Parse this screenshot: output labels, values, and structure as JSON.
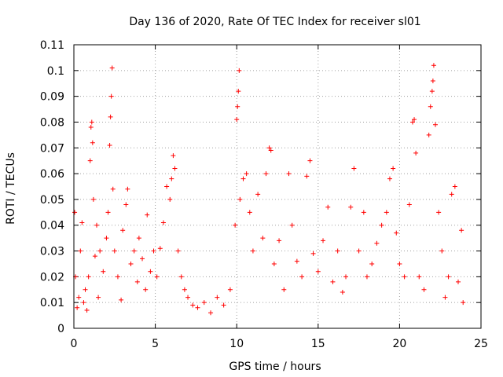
{
  "chart_data": {
    "type": "scatter",
    "title": "Day 136 of 2020, Rate Of TEC Index for receiver sl01",
    "xlabel": "GPS time / hours",
    "ylabel": "ROTI / TECUs",
    "xlim": [
      0,
      25
    ],
    "ylim": [
      0,
      0.11
    ],
    "x_ticks": [
      0,
      5,
      10,
      15,
      20,
      25
    ],
    "x_tick_labels": [
      "0",
      "5",
      "10",
      "15",
      "20",
      "25"
    ],
    "y_ticks": [
      0,
      0.01,
      0.02,
      0.03,
      0.04,
      0.05,
      0.06,
      0.07,
      0.08,
      0.09,
      0.1,
      0.11
    ],
    "y_tick_labels": [
      "0",
      "0.01",
      "0.02",
      "0.03",
      "0.04",
      "0.05",
      "0.06",
      "0.07",
      "0.08",
      "0.09",
      "0.1",
      "0.11"
    ],
    "grid": true,
    "marker": "+",
    "series_color": "#ff0000",
    "x_range_of_data": [
      0,
      24
    ],
    "points": [
      [
        0.05,
        0.045
      ],
      [
        0.1,
        0.02
      ],
      [
        0.2,
        0.008
      ],
      [
        0.3,
        0.012
      ],
      [
        0.4,
        0.03
      ],
      [
        0.5,
        0.041
      ],
      [
        0.6,
        0.01
      ],
      [
        0.7,
        0.015
      ],
      [
        0.8,
        0.007
      ],
      [
        0.9,
        0.02
      ],
      [
        1.0,
        0.065
      ],
      [
        1.05,
        0.078
      ],
      [
        1.1,
        0.08
      ],
      [
        1.15,
        0.072
      ],
      [
        1.2,
        0.05
      ],
      [
        1.3,
        0.028
      ],
      [
        1.4,
        0.04
      ],
      [
        1.5,
        0.012
      ],
      [
        1.6,
        0.03
      ],
      [
        1.8,
        0.022
      ],
      [
        2.0,
        0.035
      ],
      [
        2.1,
        0.045
      ],
      [
        2.2,
        0.071
      ],
      [
        2.25,
        0.082
      ],
      [
        2.3,
        0.09
      ],
      [
        2.35,
        0.101
      ],
      [
        2.4,
        0.054
      ],
      [
        2.5,
        0.03
      ],
      [
        2.7,
        0.02
      ],
      [
        2.9,
        0.011
      ],
      [
        3.0,
        0.038
      ],
      [
        3.2,
        0.048
      ],
      [
        3.3,
        0.054
      ],
      [
        3.5,
        0.025
      ],
      [
        3.7,
        0.03
      ],
      [
        3.9,
        0.018
      ],
      [
        4.0,
        0.035
      ],
      [
        4.2,
        0.027
      ],
      [
        4.4,
        0.015
      ],
      [
        4.5,
        0.044
      ],
      [
        4.7,
        0.022
      ],
      [
        4.9,
        0.03
      ],
      [
        5.1,
        0.02
      ],
      [
        5.3,
        0.031
      ],
      [
        5.5,
        0.041
      ],
      [
        5.7,
        0.055
      ],
      [
        5.9,
        0.05
      ],
      [
        6.0,
        0.058
      ],
      [
        6.1,
        0.067
      ],
      [
        6.2,
        0.062
      ],
      [
        6.4,
        0.03
      ],
      [
        6.6,
        0.02
      ],
      [
        6.8,
        0.015
      ],
      [
        7.0,
        0.012
      ],
      [
        7.3,
        0.009
      ],
      [
        7.6,
        0.008
      ],
      [
        8.0,
        0.01
      ],
      [
        8.4,
        0.006
      ],
      [
        8.8,
        0.012
      ],
      [
        9.2,
        0.009
      ],
      [
        9.6,
        0.015
      ],
      [
        9.9,
        0.04
      ],
      [
        10.0,
        0.081
      ],
      [
        10.05,
        0.086
      ],
      [
        10.1,
        0.092
      ],
      [
        10.15,
        0.1
      ],
      [
        10.2,
        0.05
      ],
      [
        10.4,
        0.058
      ],
      [
        10.6,
        0.06
      ],
      [
        10.8,
        0.045
      ],
      [
        11.0,
        0.03
      ],
      [
        11.3,
        0.052
      ],
      [
        11.6,
        0.035
      ],
      [
        11.8,
        0.06
      ],
      [
        12.0,
        0.07
      ],
      [
        12.1,
        0.069
      ],
      [
        12.3,
        0.025
      ],
      [
        12.6,
        0.034
      ],
      [
        12.9,
        0.015
      ],
      [
        13.2,
        0.06
      ],
      [
        13.4,
        0.04
      ],
      [
        13.7,
        0.026
      ],
      [
        14.0,
        0.02
      ],
      [
        14.3,
        0.059
      ],
      [
        14.5,
        0.065
      ],
      [
        14.7,
        0.029
      ],
      [
        15.0,
        0.022
      ],
      [
        15.3,
        0.034
      ],
      [
        15.6,
        0.047
      ],
      [
        15.9,
        0.018
      ],
      [
        16.2,
        0.03
      ],
      [
        16.5,
        0.014
      ],
      [
        16.7,
        0.02
      ],
      [
        17.0,
        0.047
      ],
      [
        17.2,
        0.062
      ],
      [
        17.5,
        0.03
      ],
      [
        17.8,
        0.045
      ],
      [
        18.0,
        0.02
      ],
      [
        18.3,
        0.025
      ],
      [
        18.6,
        0.033
      ],
      [
        18.9,
        0.04
      ],
      [
        19.2,
        0.045
      ],
      [
        19.4,
        0.058
      ],
      [
        19.6,
        0.062
      ],
      [
        19.8,
        0.037
      ],
      [
        20.0,
        0.025
      ],
      [
        20.3,
        0.02
      ],
      [
        20.6,
        0.048
      ],
      [
        20.8,
        0.08
      ],
      [
        20.9,
        0.081
      ],
      [
        21.0,
        0.068
      ],
      [
        21.2,
        0.02
      ],
      [
        21.5,
        0.015
      ],
      [
        21.8,
        0.075
      ],
      [
        21.9,
        0.086
      ],
      [
        22.0,
        0.092
      ],
      [
        22.05,
        0.096
      ],
      [
        22.1,
        0.102
      ],
      [
        22.2,
        0.079
      ],
      [
        22.4,
        0.045
      ],
      [
        22.6,
        0.03
      ],
      [
        22.8,
        0.012
      ],
      [
        23.0,
        0.02
      ],
      [
        23.2,
        0.052
      ],
      [
        23.4,
        0.055
      ],
      [
        23.6,
        0.018
      ],
      [
        23.8,
        0.038
      ],
      [
        23.9,
        0.01
      ]
    ]
  }
}
